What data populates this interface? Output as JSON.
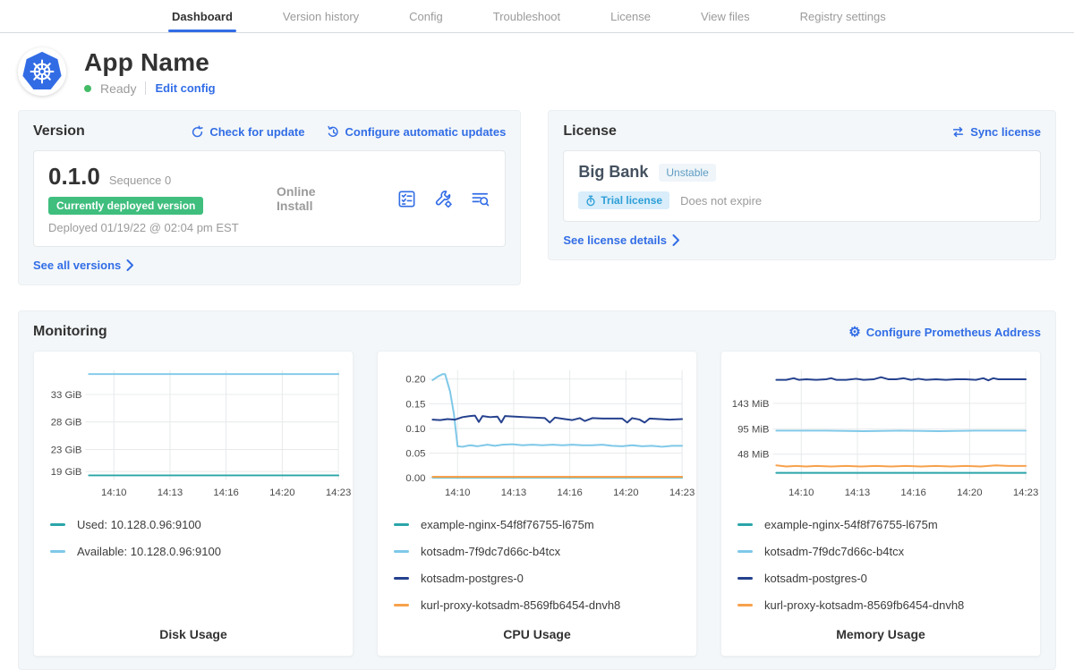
{
  "nav": {
    "tabs": [
      {
        "label": "Dashboard",
        "active": true
      },
      {
        "label": "Version history",
        "active": false
      },
      {
        "label": "Config",
        "active": false
      },
      {
        "label": "Troubleshoot",
        "active": false
      },
      {
        "label": "License",
        "active": false
      },
      {
        "label": "View files",
        "active": false
      },
      {
        "label": "Registry settings",
        "active": false
      }
    ]
  },
  "app_header": {
    "name": "App Name",
    "status": "Ready",
    "edit_config_label": "Edit config"
  },
  "version_card": {
    "title": "Version",
    "check_update_label": "Check for update",
    "auto_updates_label": "Configure automatic updates",
    "version": "0.1.0",
    "sequence": "Sequence 0",
    "deployed_badge": "Currently deployed version",
    "deployed_at": "Deployed 01/19/22 @ 02:04 pm EST",
    "install_type": "Online Install",
    "see_all_label": "See all versions"
  },
  "license_card": {
    "title": "License",
    "sync_label": "Sync license",
    "customer": "Big Bank",
    "channel": "Unstable",
    "type_badge": "Trial license",
    "expiry": "Does not expire",
    "details_label": "See license details"
  },
  "monitoring": {
    "title": "Monitoring",
    "configure_label": "Configure Prometheus Address"
  },
  "icons": {
    "app_logo": "kubernetes-wheel",
    "check_update": "refresh-circle",
    "auto_updates": "clock-refresh",
    "version_actions": [
      "preflight-checklist",
      "wrench-gear",
      "logs-magnifier"
    ],
    "sync_license": "sync-arrows",
    "trial": "stopwatch",
    "configure_prometheus": "gear",
    "links_chevron": "chevron-right"
  },
  "colors": {
    "link_blue": "#326de6",
    "k8s_blue": "#326ce5",
    "deployed_green": "#3fbe7e",
    "ready_green": "#44bb66",
    "grid": "#e6e9eb",
    "tick_text": "#4a4a4a"
  },
  "chart_data": [
    {
      "type": "line",
      "title": "Disk Usage",
      "ylim": [
        17.5,
        37.4
      ],
      "yticks": [
        {
          "value": 33,
          "label": "33 GiB"
        },
        {
          "value": 28,
          "label": "28 GiB"
        },
        {
          "value": 23,
          "label": "23 GiB"
        },
        {
          "value": 19,
          "label": "19 GiB"
        }
      ],
      "xticks": [
        {
          "f": 0.1,
          "label": "14:10"
        },
        {
          "f": 0.325,
          "label": "14:13"
        },
        {
          "f": 0.55,
          "label": "14:16"
        },
        {
          "f": 0.775,
          "label": "14:20"
        },
        {
          "f": 1.0,
          "label": "14:23"
        }
      ],
      "series": [
        {
          "name": "Used: 10.128.0.96:9100",
          "color": "#2aa5a9",
          "points": [
            [
              0,
              18.3
            ],
            [
              1,
              18.3
            ]
          ]
        },
        {
          "name": "Available: 10.128.0.96:9100",
          "color": "#7ec8e8",
          "points": [
            [
              0,
              36.7
            ],
            [
              1,
              36.7
            ]
          ]
        }
      ]
    },
    {
      "type": "line",
      "title": "CPU Usage",
      "ylim": [
        -0.004,
        0.218
      ],
      "yticks": [
        {
          "value": 0.2,
          "label": "0.20"
        },
        {
          "value": 0.15,
          "label": "0.15"
        },
        {
          "value": 0.1,
          "label": "0.10"
        },
        {
          "value": 0.05,
          "label": "0.05"
        },
        {
          "value": 0.0,
          "label": "0.00"
        }
      ],
      "xticks": [
        {
          "f": 0.1,
          "label": "14:10"
        },
        {
          "f": 0.325,
          "label": "14:13"
        },
        {
          "f": 0.55,
          "label": "14:16"
        },
        {
          "f": 0.775,
          "label": "14:20"
        },
        {
          "f": 1.0,
          "label": "14:23"
        }
      ],
      "series": [
        {
          "name": "example-nginx-54f8f76755-l675m",
          "color": "#2aa5a9",
          "points": [
            [
              0,
              0.001
            ],
            [
              1,
              0.001
            ]
          ]
        },
        {
          "name": "kotsadm-7f9dc7d66c-b4tcx",
          "color": "#7ec8e8",
          "points": [
            [
              0,
              0.198
            ],
            [
              0.02,
              0.205
            ],
            [
              0.04,
              0.21
            ],
            [
              0.05,
              0.21
            ],
            [
              0.07,
              0.175
            ],
            [
              0.085,
              0.13
            ],
            [
              0.1,
              0.064
            ],
            [
              0.12,
              0.063
            ],
            [
              0.15,
              0.066
            ],
            [
              0.18,
              0.064
            ],
            [
              0.22,
              0.067
            ],
            [
              0.25,
              0.065
            ],
            [
              0.28,
              0.067
            ],
            [
              0.32,
              0.068
            ],
            [
              0.36,
              0.066
            ],
            [
              0.4,
              0.067
            ],
            [
              0.44,
              0.066
            ],
            [
              0.48,
              0.067
            ],
            [
              0.52,
              0.066
            ],
            [
              0.56,
              0.067
            ],
            [
              0.6,
              0.066
            ],
            [
              0.64,
              0.066
            ],
            [
              0.68,
              0.067
            ],
            [
              0.72,
              0.065
            ],
            [
              0.76,
              0.064
            ],
            [
              0.8,
              0.066
            ],
            [
              0.84,
              0.064
            ],
            [
              0.88,
              0.065
            ],
            [
              0.92,
              0.063
            ],
            [
              0.96,
              0.065
            ],
            [
              1,
              0.065
            ]
          ]
        },
        {
          "name": "kotsadm-postgres-0",
          "color": "#25418e",
          "points": [
            [
              0,
              0.118
            ],
            [
              0.03,
              0.117
            ],
            [
              0.06,
              0.119
            ],
            [
              0.09,
              0.118
            ],
            [
              0.12,
              0.123
            ],
            [
              0.15,
              0.125
            ],
            [
              0.17,
              0.126
            ],
            [
              0.185,
              0.113
            ],
            [
              0.2,
              0.125
            ],
            [
              0.23,
              0.123
            ],
            [
              0.26,
              0.124
            ],
            [
              0.275,
              0.112
            ],
            [
              0.29,
              0.125
            ],
            [
              0.33,
              0.124
            ],
            [
              0.37,
              0.123
            ],
            [
              0.41,
              0.122
            ],
            [
              0.45,
              0.121
            ],
            [
              0.47,
              0.112
            ],
            [
              0.49,
              0.122
            ],
            [
              0.53,
              0.119
            ],
            [
              0.56,
              0.117
            ],
            [
              0.59,
              0.121
            ],
            [
              0.61,
              0.115
            ],
            [
              0.64,
              0.121
            ],
            [
              0.68,
              0.12
            ],
            [
              0.72,
              0.12
            ],
            [
              0.76,
              0.12
            ],
            [
              0.78,
              0.112
            ],
            [
              0.8,
              0.121
            ],
            [
              0.83,
              0.118
            ],
            [
              0.85,
              0.112
            ],
            [
              0.87,
              0.12
            ],
            [
              0.91,
              0.119
            ],
            [
              0.95,
              0.118
            ],
            [
              1,
              0.119
            ]
          ]
        },
        {
          "name": "kurl-proxy-kotsadm-8569fb6454-dnvh8",
          "color": "#f7a14c",
          "points": [
            [
              0,
              0.002
            ],
            [
              1,
              0.002
            ]
          ]
        }
      ]
    },
    {
      "type": "line",
      "title": "Memory Usage",
      "ylim": [
        0,
        205
      ],
      "yticks": [
        {
          "value": 143,
          "label": "143 MiB"
        },
        {
          "value": 95,
          "label": "95 MiB"
        },
        {
          "value": 48,
          "label": "48 MiB"
        }
      ],
      "xticks": [
        {
          "f": 0.1,
          "label": "14:10"
        },
        {
          "f": 0.325,
          "label": "14:13"
        },
        {
          "f": 0.55,
          "label": "14:16"
        },
        {
          "f": 0.775,
          "label": "14:20"
        },
        {
          "f": 1.0,
          "label": "14:23"
        }
      ],
      "series": [
        {
          "name": "example-nginx-54f8f76755-l675m",
          "color": "#2aa5a9",
          "points": [
            [
              0,
              13
            ],
            [
              1,
              13
            ]
          ]
        },
        {
          "name": "kotsadm-7f9dc7d66c-b4tcx",
          "color": "#7ec8e8",
          "points": [
            [
              0,
              92
            ],
            [
              0.2,
              92
            ],
            [
              0.35,
              91
            ],
            [
              0.5,
              92
            ],
            [
              0.65,
              91
            ],
            [
              0.8,
              92
            ],
            [
              1,
              92
            ]
          ]
        },
        {
          "name": "kotsadm-postgres-0",
          "color": "#25418e",
          "points": [
            [
              0,
              187
            ],
            [
              0.04,
              187
            ],
            [
              0.07,
              190
            ],
            [
              0.09,
              187
            ],
            [
              0.12,
              188
            ],
            [
              0.16,
              187
            ],
            [
              0.2,
              188
            ],
            [
              0.22,
              190
            ],
            [
              0.24,
              187
            ],
            [
              0.28,
              187
            ],
            [
              0.32,
              189
            ],
            [
              0.35,
              187
            ],
            [
              0.39,
              188
            ],
            [
              0.42,
              192
            ],
            [
              0.45,
              188
            ],
            [
              0.48,
              188
            ],
            [
              0.51,
              190
            ],
            [
              0.54,
              187
            ],
            [
              0.57,
              189
            ],
            [
              0.6,
              187
            ],
            [
              0.64,
              188
            ],
            [
              0.68,
              187
            ],
            [
              0.72,
              188
            ],
            [
              0.76,
              188
            ],
            [
              0.8,
              187
            ],
            [
              0.83,
              190
            ],
            [
              0.85,
              186
            ],
            [
              0.87,
              190
            ],
            [
              0.89,
              188
            ],
            [
              0.93,
              188
            ],
            [
              1,
              188
            ]
          ]
        },
        {
          "name": "kurl-proxy-kotsadm-8569fb6454-dnvh8",
          "color": "#f7a14c",
          "points": [
            [
              0,
              27
            ],
            [
              0.04,
              25
            ],
            [
              0.08,
              26
            ],
            [
              0.12,
              25
            ],
            [
              0.16,
              26
            ],
            [
              0.22,
              25
            ],
            [
              0.28,
              26
            ],
            [
              0.34,
              25
            ],
            [
              0.4,
              26
            ],
            [
              0.46,
              25
            ],
            [
              0.52,
              26
            ],
            [
              0.58,
              25
            ],
            [
              0.64,
              26
            ],
            [
              0.7,
              25
            ],
            [
              0.76,
              26
            ],
            [
              0.82,
              25
            ],
            [
              0.88,
              27
            ],
            [
              0.93,
              26
            ],
            [
              1,
              26
            ]
          ]
        }
      ]
    }
  ]
}
